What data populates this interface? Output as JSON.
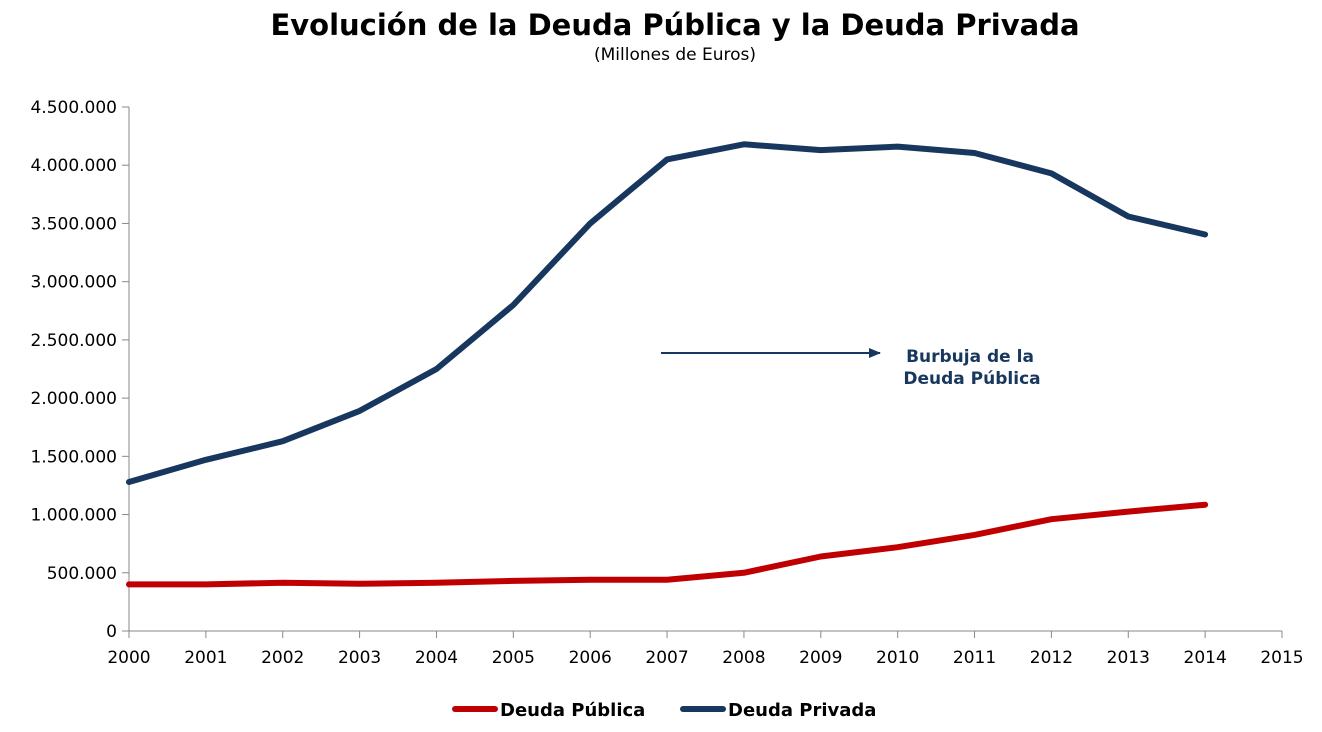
{
  "chart_data": {
    "type": "line",
    "title": "Evolución de la Deuda Pública y la Deuda Privada",
    "subtitle": "(Millones de Euros)",
    "xlabel": "",
    "ylabel": "",
    "xlim": [
      2000,
      2015
    ],
    "ylim": [
      0,
      4500000
    ],
    "x_ticks": [
      2000,
      2001,
      2002,
      2003,
      2004,
      2005,
      2006,
      2007,
      2008,
      2009,
      2010,
      2011,
      2012,
      2013,
      2014,
      2015
    ],
    "y_ticks": [
      0,
      500000,
      1000000,
      1500000,
      2000000,
      2500000,
      3000000,
      3500000,
      4000000,
      4500000
    ],
    "y_tick_labels": [
      "0",
      "500.000",
      "1.000.000",
      "1.500.000",
      "2.000.000",
      "2.500.000",
      "3.000.000",
      "3.500.000",
      "4.000.000",
      "4.500.000"
    ],
    "grid": false,
    "legend_position": "bottom",
    "series": [
      {
        "name": "Deuda Pública",
        "color": "#c00000",
        "x": [
          2000,
          2001,
          2002,
          2003,
          2004,
          2005,
          2006,
          2007,
          2008,
          2009,
          2010,
          2011,
          2012,
          2013,
          2014
        ],
        "values": [
          400000,
          400000,
          415000,
          405000,
          415000,
          430000,
          440000,
          440000,
          500000,
          640000,
          720000,
          825000,
          960000,
          1025000,
          1085000
        ]
      },
      {
        "name": "Deuda Privada",
        "color": "#17375e",
        "x": [
          2000,
          2001,
          2002,
          2003,
          2004,
          2005,
          2006,
          2007,
          2008,
          2009,
          2010,
          2011,
          2012,
          2013,
          2014
        ],
        "values": [
          1280000,
          1470000,
          1630000,
          1890000,
          2250000,
          2800000,
          3500000,
          4050000,
          4180000,
          4130000,
          4160000,
          4105000,
          3930000,
          3560000,
          3405000
        ]
      }
    ],
    "annotations": [
      {
        "text_lines": [
          "Burbuja de la",
          "Deuda Pública"
        ],
        "arrow": true
      }
    ]
  }
}
